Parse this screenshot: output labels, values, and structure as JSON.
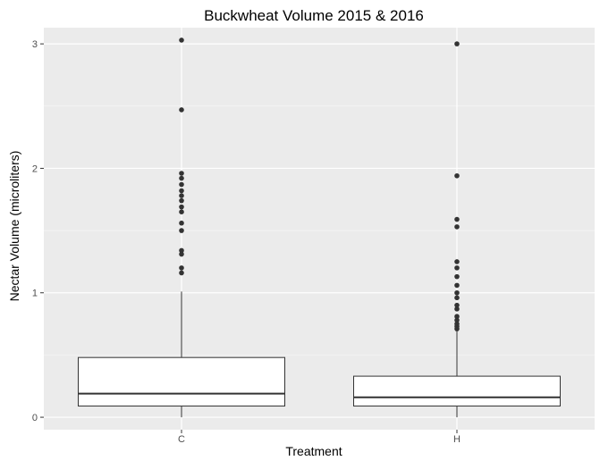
{
  "chart_data": {
    "type": "boxplot",
    "title": "Buckwheat Volume 2015 & 2016",
    "xlabel": "Treatment",
    "ylabel": "Nectar Volume (microliters)",
    "ylim": [
      -0.1,
      3.13
    ],
    "y_ticks": [
      0,
      1,
      2,
      3
    ],
    "grid": true,
    "legend": "none",
    "categories": [
      "C",
      "H"
    ],
    "boxes": [
      {
        "category": "C",
        "whisker_low": 0.0,
        "q1": 0.09,
        "median": 0.19,
        "q3": 0.48,
        "whisker_high": 1.01,
        "outliers": [
          1.16,
          1.2,
          1.31,
          1.34,
          1.5,
          1.56,
          1.65,
          1.69,
          1.74,
          1.78,
          1.82,
          1.87,
          1.92,
          1.96,
          2.47,
          3.03
        ]
      },
      {
        "category": "H",
        "whisker_low": 0.0,
        "q1": 0.09,
        "median": 0.16,
        "q3": 0.33,
        "whisker_high": 0.69,
        "outliers": [
          0.71,
          0.73,
          0.75,
          0.78,
          0.81,
          0.87,
          0.9,
          0.96,
          1.0,
          1.06,
          1.13,
          1.2,
          1.25,
          1.53,
          1.59,
          1.94,
          3.0
        ]
      }
    ],
    "colors": {
      "panel": "#ebebeb",
      "grid_major": "#ffffff",
      "grid_minor": "#f5f5f5",
      "box_fill": "#ffffff",
      "line": "#333333",
      "outlier": "#333333",
      "axis_text": "#4d4d4d",
      "title_text": "#000000"
    }
  }
}
